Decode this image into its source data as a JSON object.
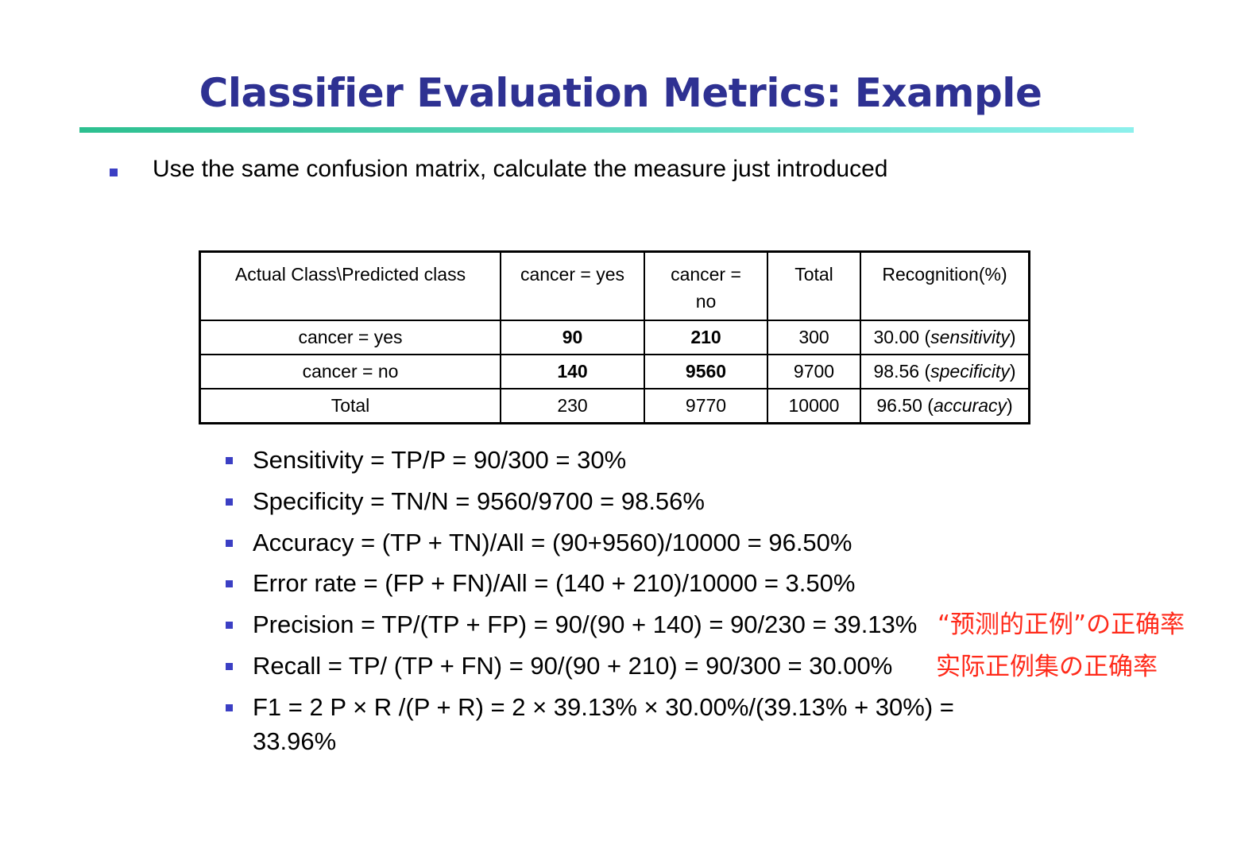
{
  "title": "Classifier Evaluation Metrics: Example",
  "intro": "Use the same confusion matrix, calculate the measure just introduced",
  "table": {
    "header": {
      "c0": "Actual Class\\Predicted class",
      "c1": "cancer = yes",
      "c2a": "cancer =",
      "c2b": "no",
      "c3": "Total",
      "c4": "Recognition(%)"
    },
    "rows": [
      {
        "label": "cancer = yes",
        "a": "90",
        "b": "210",
        "total": "300",
        "rec_num": "30.00",
        "rec_term": "sensitivity"
      },
      {
        "label": "cancer = no",
        "a": "140",
        "b": "9560",
        "total": "9700",
        "rec_num": "98.56",
        "rec_term": "specificity"
      },
      {
        "label": "Total",
        "a": "230",
        "b": "9770",
        "total": "10000",
        "rec_num": "96.50",
        "rec_term": "accuracy"
      }
    ]
  },
  "metrics": [
    "Sensitivity = TP/P = 90/300 = 30%",
    "Specificity = TN/N = 9560/9700 = 98.56%",
    "Accuracy = (TP + TN)/All = (90+9560)/10000 = 96.50%",
    "Error rate = (FP + FN)/All = (140 + 210)/10000 = 3.50%",
    "Precision = TP/(TP + FP) = 90/(90 + 140) = 90/230 = 39.13%",
    "Recall = TP/ (TP + FN) = 90/(90 + 210) = 90/300 = 30.00%",
    "F1 = 2 P × R /(P + R) = 2 × 39.13% × 30.00%/(39.13% + 30%) =",
    "33.96%"
  ],
  "annotations": {
    "precision_note": "“预测的正例”の正确率",
    "recall_note": "实际正例集の正确率"
  },
  "colors": {
    "title": "#2e3192",
    "bullet": "#3b3fc4",
    "annotation": "#ff2a1a"
  }
}
